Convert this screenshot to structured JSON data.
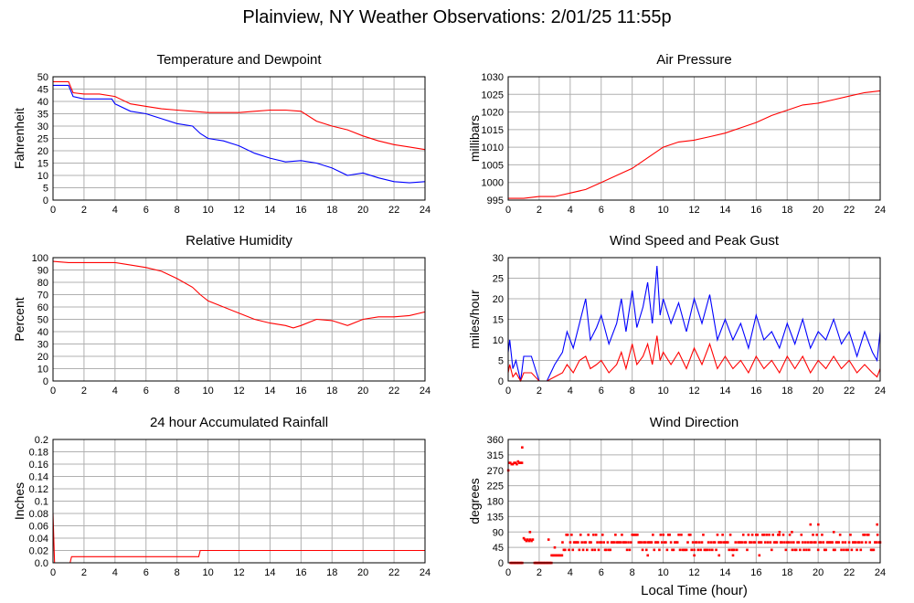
{
  "page": {
    "title": "Plainview, NY Weather Observations: 2/01/25 11:55p"
  },
  "chart_data": [
    {
      "id": "temp",
      "type": "line",
      "title": "Temperature and Dewpoint",
      "xlabel": "",
      "ylabel": "Fahrenheit",
      "xlim": [
        0,
        24
      ],
      "ylim": [
        0,
        50
      ],
      "xticks": [
        0,
        2,
        4,
        6,
        8,
        10,
        12,
        14,
        16,
        18,
        20,
        22,
        24
      ],
      "yticks": [
        0,
        5,
        10,
        15,
        20,
        25,
        30,
        35,
        40,
        45,
        50
      ],
      "grid": true,
      "series": [
        {
          "color": "#ff0000",
          "x": [
            0,
            1,
            1.3,
            2,
            3,
            4,
            5,
            6,
            7,
            8,
            9,
            10,
            11,
            12,
            13,
            14,
            15,
            16,
            17,
            18,
            19,
            20,
            21,
            22,
            23,
            24
          ],
          "y": [
            48,
            48,
            43.5,
            43,
            43,
            42,
            39,
            38,
            37,
            36.5,
            36,
            35.5,
            35.5,
            35.5,
            36,
            36.5,
            36.5,
            36,
            32,
            30,
            28.5,
            26,
            24,
            22.5,
            21.5,
            20.5
          ]
        },
        {
          "color": "#0000ff",
          "x": [
            0,
            1,
            1.3,
            2,
            3,
            3.8,
            4,
            5,
            6,
            7,
            8,
            9,
            9.5,
            10,
            11,
            12,
            13,
            14,
            15,
            16,
            17,
            18,
            19,
            20,
            21,
            22,
            23,
            24
          ],
          "y": [
            46.5,
            46.5,
            42,
            41,
            41,
            41,
            39,
            36,
            35,
            33,
            31,
            30,
            27,
            25,
            24,
            22,
            19,
            17,
            15.5,
            16,
            15,
            13,
            10,
            11,
            9,
            7.5,
            7,
            7.5
          ]
        }
      ]
    },
    {
      "id": "pressure",
      "type": "line",
      "title": "Air Pressure",
      "xlabel": "",
      "ylabel": "millibars",
      "xlim": [
        0,
        24
      ],
      "ylim": [
        995,
        1030
      ],
      "xticks": [
        0,
        2,
        4,
        6,
        8,
        10,
        12,
        14,
        16,
        18,
        20,
        22,
        24
      ],
      "yticks": [
        995,
        1000,
        1005,
        1010,
        1015,
        1020,
        1025,
        1030
      ],
      "grid": true,
      "series": [
        {
          "color": "#ff0000",
          "x": [
            0,
            1,
            2,
            3,
            4,
            5,
            6,
            7,
            8,
            9,
            10,
            11,
            12,
            13,
            14,
            15,
            16,
            17,
            18,
            19,
            20,
            21,
            22,
            23,
            24
          ],
          "y": [
            995.5,
            995.5,
            996,
            996,
            997,
            998,
            1000,
            1002,
            1004,
            1007,
            1010,
            1011.5,
            1012,
            1013,
            1014,
            1015.5,
            1017,
            1019,
            1020.5,
            1022,
            1022.5,
            1023.5,
            1024.5,
            1025.5,
            1026
          ]
        }
      ]
    },
    {
      "id": "rh",
      "type": "line",
      "title": "Relative Humidity",
      "xlabel": "",
      "ylabel": "Percent",
      "xlim": [
        0,
        24
      ],
      "ylim": [
        0,
        100
      ],
      "xticks": [
        0,
        2,
        4,
        6,
        8,
        10,
        12,
        14,
        16,
        18,
        20,
        22,
        24
      ],
      "yticks": [
        0,
        10,
        20,
        30,
        40,
        50,
        60,
        70,
        80,
        90,
        100
      ],
      "grid": true,
      "series": [
        {
          "color": "#ff0000",
          "x": [
            0,
            1,
            2,
            3,
            4,
            5,
            6,
            7,
            8,
            9,
            9.5,
            10,
            11,
            12,
            13,
            14,
            15,
            15.5,
            16,
            17,
            18,
            19,
            20,
            21,
            22,
            23,
            24
          ],
          "y": [
            97,
            96,
            96,
            96,
            96,
            94,
            92,
            89,
            83,
            76,
            70,
            65,
            60,
            55,
            50,
            47,
            45,
            43,
            45,
            50,
            49,
            45,
            50,
            52,
            52,
            53,
            56
          ]
        }
      ]
    },
    {
      "id": "wind",
      "type": "line",
      "title": "Wind Speed and Peak Gust",
      "xlabel": "",
      "ylabel": "miles/hour",
      "xlim": [
        0,
        24
      ],
      "ylim": [
        0,
        30
      ],
      "xticks": [
        0,
        2,
        4,
        6,
        8,
        10,
        12,
        14,
        16,
        18,
        20,
        22,
        24
      ],
      "yticks": [
        0,
        5,
        10,
        15,
        20,
        25,
        30
      ],
      "grid": true,
      "series": [
        {
          "color": "#0000ff",
          "x": [
            0,
            0.1,
            0.3,
            0.5,
            0.8,
            1.0,
            1.5,
            2.0,
            2.5,
            3.0,
            3.5,
            3.8,
            4.2,
            4.6,
            5.0,
            5.3,
            5.7,
            6.0,
            6.5,
            7.0,
            7.3,
            7.6,
            8.0,
            8.3,
            8.7,
            9.0,
            9.3,
            9.6,
            9.8,
            10.0,
            10.5,
            11.0,
            11.5,
            12.0,
            12.5,
            13.0,
            13.5,
            14.0,
            14.5,
            15.0,
            15.5,
            16.0,
            16.5,
            17.0,
            17.5,
            18.0,
            18.5,
            19.0,
            19.5,
            20.0,
            20.5,
            21.0,
            21.5,
            22.0,
            22.5,
            23.0,
            23.5,
            23.8,
            24
          ],
          "y": [
            7,
            10,
            3,
            5,
            0,
            6,
            6,
            0,
            0,
            4,
            7,
            12,
            8,
            14,
            20,
            10,
            13,
            16,
            9,
            14,
            20,
            12,
            22,
            13,
            18,
            24,
            14,
            28,
            16,
            20,
            14,
            19,
            12,
            20,
            14,
            21,
            10,
            15,
            10,
            14,
            8,
            16,
            10,
            12,
            8,
            14,
            9,
            15,
            8,
            12,
            10,
            15,
            9,
            12,
            6,
            12,
            7,
            5,
            12
          ]
        },
        {
          "color": "#ff0000",
          "x": [
            0,
            0.1,
            0.3,
            0.5,
            0.8,
            1.0,
            1.5,
            2.0,
            2.5,
            3.0,
            3.5,
            3.8,
            4.2,
            4.6,
            5.0,
            5.3,
            5.7,
            6.0,
            6.5,
            7.0,
            7.3,
            7.6,
            8.0,
            8.3,
            8.7,
            9.0,
            9.3,
            9.6,
            9.8,
            10.0,
            10.5,
            11.0,
            11.5,
            12.0,
            12.5,
            13.0,
            13.5,
            14.0,
            14.5,
            15.0,
            15.5,
            16.0,
            16.5,
            17.0,
            17.5,
            18.0,
            18.5,
            19.0,
            19.5,
            20.0,
            20.5,
            21.0,
            21.5,
            22.0,
            22.5,
            23.0,
            23.5,
            23.8,
            24
          ],
          "y": [
            2,
            4,
            1,
            2,
            0,
            2,
            2,
            0,
            0,
            1,
            2,
            4,
            2,
            5,
            6,
            3,
            4,
            5,
            2,
            4,
            7,
            3,
            9,
            4,
            6,
            9,
            4,
            11,
            5,
            7,
            4,
            7,
            3,
            8,
            4,
            9,
            3,
            6,
            3,
            5,
            2,
            6,
            3,
            5,
            2,
            6,
            3,
            6,
            2,
            5,
            3,
            6,
            3,
            5,
            2,
            4,
            2,
            1,
            3
          ]
        }
      ]
    },
    {
      "id": "rain",
      "type": "line",
      "title": "24 hour Accumulated Rainfall",
      "xlabel": "",
      "ylabel": "Inches",
      "xlim": [
        0,
        24
      ],
      "ylim": [
        0,
        0.2
      ],
      "xticks": [
        0,
        2,
        4,
        6,
        8,
        10,
        12,
        14,
        16,
        18,
        20,
        22,
        24
      ],
      "yticks": [
        0,
        0.02,
        0.04,
        0.06,
        0.08,
        0.1,
        0.12,
        0.14,
        0.16,
        0.18,
        0.2
      ],
      "ytick_labels": [
        "0.0",
        "0.02",
        "0.04",
        "0.06",
        "0.08",
        "0.1",
        "0.12",
        "0.14",
        "0.16",
        "0.18",
        "0.2"
      ],
      "grid": true,
      "series": [
        {
          "color": "#ff0000",
          "x": [
            0,
            0.1,
            1.1,
            1.2,
            9.4,
            9.5,
            24
          ],
          "y": [
            0.08,
            0,
            0,
            0.01,
            0.01,
            0.02,
            0.02
          ]
        }
      ]
    },
    {
      "id": "winddir",
      "type": "scatter",
      "title": "Wind Direction",
      "xlabel": "Local Time (hour)",
      "ylabel": "degrees",
      "xlim": [
        0,
        24
      ],
      "ylim": [
        0,
        360
      ],
      "xticks": [
        0,
        2,
        4,
        6,
        8,
        10,
        12,
        14,
        16,
        18,
        20,
        22,
        24
      ],
      "yticks": [
        0,
        45,
        90,
        135,
        180,
        225,
        270,
        315,
        360
      ],
      "grid": true,
      "series": [
        {
          "color": "#ff0000",
          "segments": [
            {
              "x0": 0.05,
              "x1": 0.9,
              "y": 292,
              "jitter": 4
            },
            {
              "x0": 0.15,
              "x1": 0.95,
              "y": 0,
              "jitter": 0
            },
            {
              "x0": 1.0,
              "x1": 1.6,
              "y": 68,
              "jitter": 4
            },
            {
              "x0": 1.7,
              "x1": 2.8,
              "y": 0,
              "jitter": 0
            },
            {
              "x0": 2.8,
              "x1": 3.5,
              "y": 22,
              "jitter": 0
            },
            {
              "x0": 3.5,
              "x1": 24,
              "y": 60,
              "jitter": 22
            }
          ],
          "points": [
            [
              0,
              270
            ],
            [
              0.9,
              337
            ],
            [
              1.4,
              90
            ],
            [
              2.6,
              68
            ],
            [
              3.0,
              45
            ],
            [
              9.0,
              22
            ],
            [
              12.0,
              22
            ],
            [
              13.6,
              22
            ],
            [
              14.5,
              22
            ],
            [
              16.2,
              22
            ],
            [
              17.5,
              90
            ],
            [
              18.3,
              90
            ],
            [
              19.5,
              112
            ],
            [
              20.0,
              112
            ],
            [
              21.0,
              90
            ],
            [
              23.8,
              112
            ]
          ]
        }
      ]
    }
  ]
}
